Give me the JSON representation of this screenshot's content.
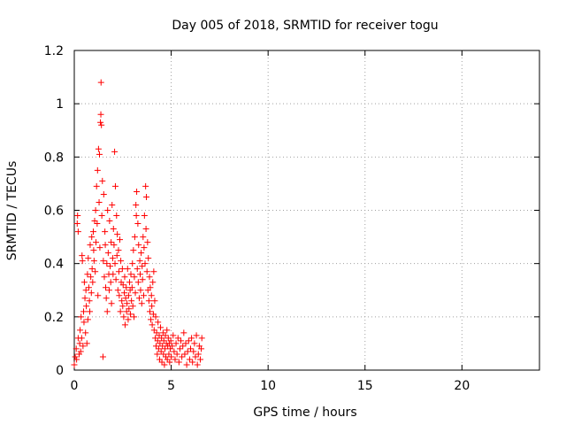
{
  "chart_data": {
    "type": "scatter",
    "title": "Day 005 of 2018, SRMTID for receiver togu",
    "xlabel": "GPS time / hours",
    "ylabel": "SRMTID / TECUs",
    "xlim": [
      0,
      24
    ],
    "ylim": [
      0,
      1.2
    ],
    "xticks": [
      0,
      5,
      10,
      15,
      20
    ],
    "xtick_labels": [
      "0",
      "5",
      "10",
      "15",
      "20"
    ],
    "yticks": [
      0,
      0.2,
      0.4,
      0.6,
      0.8,
      1.0,
      1.2
    ],
    "ytick_labels": [
      "0",
      "0.2",
      "0.4",
      "0.6",
      "0.8",
      "1",
      "1.2"
    ],
    "grid": true,
    "marker": "+",
    "color": "#ff0000",
    "series": [
      {
        "name": "SRMTID",
        "points": [
          [
            0.0,
            0.02
          ],
          [
            0.05,
            0.05
          ],
          [
            0.1,
            0.08
          ],
          [
            0.12,
            0.04
          ],
          [
            0.15,
            0.55
          ],
          [
            0.17,
            0.58
          ],
          [
            0.2,
            0.52
          ],
          [
            0.2,
            0.12
          ],
          [
            0.25,
            0.06
          ],
          [
            0.28,
            0.1
          ],
          [
            0.3,
            0.15
          ],
          [
            0.33,
            0.07
          ],
          [
            0.35,
            0.2
          ],
          [
            0.38,
            0.12
          ],
          [
            0.4,
            0.43
          ],
          [
            0.42,
            0.41
          ],
          [
            0.45,
            0.09
          ],
          [
            0.48,
            0.22
          ],
          [
            0.5,
            0.18
          ],
          [
            0.52,
            0.33
          ],
          [
            0.55,
            0.27
          ],
          [
            0.58,
            0.14
          ],
          [
            0.6,
            0.3
          ],
          [
            0.62,
            0.24
          ],
          [
            0.65,
            0.1
          ],
          [
            0.68,
            0.36
          ],
          [
            0.7,
            0.19
          ],
          [
            0.72,
            0.42
          ],
          [
            0.75,
            0.31
          ],
          [
            0.78,
            0.26
          ],
          [
            0.8,
            0.22
          ],
          [
            0.82,
            0.47
          ],
          [
            0.85,
            0.35
          ],
          [
            0.88,
            0.29
          ],
          [
            0.9,
            0.5
          ],
          [
            0.92,
            0.38
          ],
          [
            0.95,
            0.33
          ],
          [
            0.98,
            0.52
          ],
          [
            1.0,
            0.45
          ],
          [
            1.02,
            0.41
          ],
          [
            1.05,
            0.56
          ],
          [
            1.08,
            0.37
          ],
          [
            1.1,
            0.6
          ],
          [
            1.12,
            0.48
          ],
          [
            1.15,
            0.69
          ],
          [
            1.18,
            0.55
          ],
          [
            1.2,
            0.75
          ],
          [
            1.22,
            0.28
          ],
          [
            1.25,
            0.83
          ],
          [
            1.28,
            0.63
          ],
          [
            1.3,
            0.81
          ],
          [
            1.32,
            0.46
          ],
          [
            1.35,
            0.93
          ],
          [
            1.37,
            0.96
          ],
          [
            1.38,
            1.08
          ],
          [
            1.4,
            0.92
          ],
          [
            1.42,
            0.58
          ],
          [
            1.45,
            0.71
          ],
          [
            1.48,
            0.05
          ],
          [
            1.5,
            0.41
          ],
          [
            1.52,
            0.66
          ],
          [
            1.55,
            0.35
          ],
          [
            1.58,
            0.52
          ],
          [
            1.6,
            0.47
          ],
          [
            1.62,
            0.31
          ],
          [
            1.65,
            0.27
          ],
          [
            1.68,
            0.4
          ],
          [
            1.7,
            0.22
          ],
          [
            1.72,
            0.6
          ],
          [
            1.75,
            0.44
          ],
          [
            1.78,
            0.36
          ],
          [
            1.8,
            0.3
          ],
          [
            1.82,
            0.56
          ],
          [
            1.85,
            0.39
          ],
          [
            1.88,
            0.33
          ],
          [
            1.9,
            0.48
          ],
          [
            1.92,
            0.25
          ],
          [
            1.95,
            0.62
          ],
          [
            1.98,
            0.42
          ],
          [
            2.0,
            0.36
          ],
          [
            2.02,
            0.53
          ],
          [
            2.05,
            0.47
          ],
          [
            2.08,
            0.82
          ],
          [
            2.1,
            0.4
          ],
          [
            2.12,
            0.69
          ],
          [
            2.15,
            0.34
          ],
          [
            2.18,
            0.58
          ],
          [
            2.2,
            0.43
          ],
          [
            2.22,
            0.51
          ],
          [
            2.25,
            0.3
          ],
          [
            2.28,
            0.45
          ],
          [
            2.3,
            0.37
          ],
          [
            2.32,
            0.28
          ],
          [
            2.35,
            0.49
          ],
          [
            2.38,
            0.22
          ],
          [
            2.4,
            0.41
          ],
          [
            2.42,
            0.33
          ],
          [
            2.45,
            0.26
          ],
          [
            2.48,
            0.38
          ],
          [
            2.5,
            0.24
          ],
          [
            2.52,
            0.32
          ],
          [
            2.55,
            0.2
          ],
          [
            2.58,
            0.29
          ],
          [
            2.6,
            0.35
          ],
          [
            2.62,
            0.17
          ],
          [
            2.65,
            0.27
          ],
          [
            2.68,
            0.31
          ],
          [
            2.7,
            0.22
          ],
          [
            2.72,
            0.25
          ],
          [
            2.75,
            0.38
          ],
          [
            2.78,
            0.19
          ],
          [
            2.8,
            0.28
          ],
          [
            2.82,
            0.23
          ],
          [
            2.85,
            0.33
          ],
          [
            2.88,
            0.3
          ],
          [
            2.9,
            0.21
          ],
          [
            2.92,
            0.36
          ],
          [
            2.95,
            0.26
          ],
          [
            2.98,
            0.31
          ],
          [
            3.0,
            0.4
          ],
          [
            3.02,
            0.24
          ],
          [
            3.05,
            0.45
          ],
          [
            3.08,
            0.2
          ],
          [
            3.1,
            0.35
          ],
          [
            3.12,
            0.5
          ],
          [
            3.15,
            0.29
          ],
          [
            3.18,
            0.62
          ],
          [
            3.2,
            0.58
          ],
          [
            3.22,
            0.67
          ],
          [
            3.25,
            0.38
          ],
          [
            3.28,
            0.55
          ],
          [
            3.3,
            0.33
          ],
          [
            3.32,
            0.47
          ],
          [
            3.35,
            0.27
          ],
          [
            3.38,
            0.41
          ],
          [
            3.4,
            0.36
          ],
          [
            3.42,
            0.3
          ],
          [
            3.45,
            0.44
          ],
          [
            3.48,
            0.25
          ],
          [
            3.5,
            0.39
          ],
          [
            3.52,
            0.34
          ],
          [
            3.55,
            0.5
          ],
          [
            3.58,
            0.28
          ],
          [
            3.6,
            0.46
          ],
          [
            3.62,
            0.58
          ],
          [
            3.65,
            0.4
          ],
          [
            3.68,
            0.69
          ],
          [
            3.7,
            0.53
          ],
          [
            3.72,
            0.65
          ],
          [
            3.75,
            0.37
          ],
          [
            3.78,
            0.48
          ],
          [
            3.8,
            0.3
          ],
          [
            3.82,
            0.42
          ],
          [
            3.85,
            0.26
          ],
          [
            3.88,
            0.35
          ],
          [
            3.9,
            0.22
          ],
          [
            3.92,
            0.31
          ],
          [
            3.95,
            0.19
          ],
          [
            3.98,
            0.28
          ],
          [
            4.0,
            0.24
          ],
          [
            4.02,
            0.17
          ],
          [
            4.05,
            0.33
          ],
          [
            4.08,
            0.21
          ],
          [
            4.1,
            0.37
          ],
          [
            4.12,
            0.15
          ],
          [
            4.15,
            0.26
          ],
          [
            4.18,
            0.12
          ],
          [
            4.2,
            0.2
          ],
          [
            4.22,
            0.09
          ],
          [
            4.25,
            0.14
          ],
          [
            4.28,
            0.06
          ],
          [
            4.3,
            0.11
          ],
          [
            4.32,
            0.18
          ],
          [
            4.35,
            0.08
          ],
          [
            4.38,
            0.13
          ],
          [
            4.4,
            0.04
          ],
          [
            4.42,
            0.1
          ],
          [
            4.45,
            0.16
          ],
          [
            4.48,
            0.07
          ],
          [
            4.5,
            0.12
          ],
          [
            4.52,
            0.03
          ],
          [
            4.55,
            0.09
          ],
          [
            4.58,
            0.14
          ],
          [
            4.6,
            0.06
          ],
          [
            4.62,
            0.11
          ],
          [
            4.65,
            0.02
          ],
          [
            4.68,
            0.08
          ],
          [
            4.7,
            0.13
          ],
          [
            4.72,
            0.05
          ],
          [
            4.75,
            0.1
          ],
          [
            4.78,
            0.15
          ],
          [
            4.8,
            0.04
          ],
          [
            4.82,
            0.09
          ],
          [
            4.85,
            0.12
          ],
          [
            4.88,
            0.06
          ],
          [
            4.9,
            0.1
          ],
          [
            4.92,
            0.03
          ],
          [
            4.95,
            0.08
          ],
          [
            4.98,
            0.11
          ],
          [
            5.0,
            0.05
          ],
          [
            5.05,
            0.09
          ],
          [
            5.1,
            0.13
          ],
          [
            5.15,
            0.07
          ],
          [
            5.2,
            0.04
          ],
          [
            5.25,
            0.1
          ],
          [
            5.3,
            0.06
          ],
          [
            5.35,
            0.12
          ],
          [
            5.4,
            0.03
          ],
          [
            5.45,
            0.08
          ],
          [
            5.5,
            0.11
          ],
          [
            5.55,
            0.05
          ],
          [
            5.6,
            0.09
          ],
          [
            5.65,
            0.14
          ],
          [
            5.7,
            0.06
          ],
          [
            5.75,
            0.1
          ],
          [
            5.8,
            0.02
          ],
          [
            5.85,
            0.07
          ],
          [
            5.9,
            0.11
          ],
          [
            5.95,
            0.04
          ],
          [
            6.0,
            0.08
          ],
          [
            6.05,
            0.12
          ],
          [
            6.1,
            0.03
          ],
          [
            6.15,
            0.07
          ],
          [
            6.2,
            0.1
          ],
          [
            6.25,
            0.05
          ],
          [
            6.3,
            0.13
          ],
          [
            6.35,
            0.02
          ],
          [
            6.4,
            0.06
          ],
          [
            6.45,
            0.09
          ],
          [
            6.5,
            0.04
          ],
          [
            6.55,
            0.08
          ],
          [
            6.58,
            0.12
          ]
        ]
      }
    ]
  }
}
